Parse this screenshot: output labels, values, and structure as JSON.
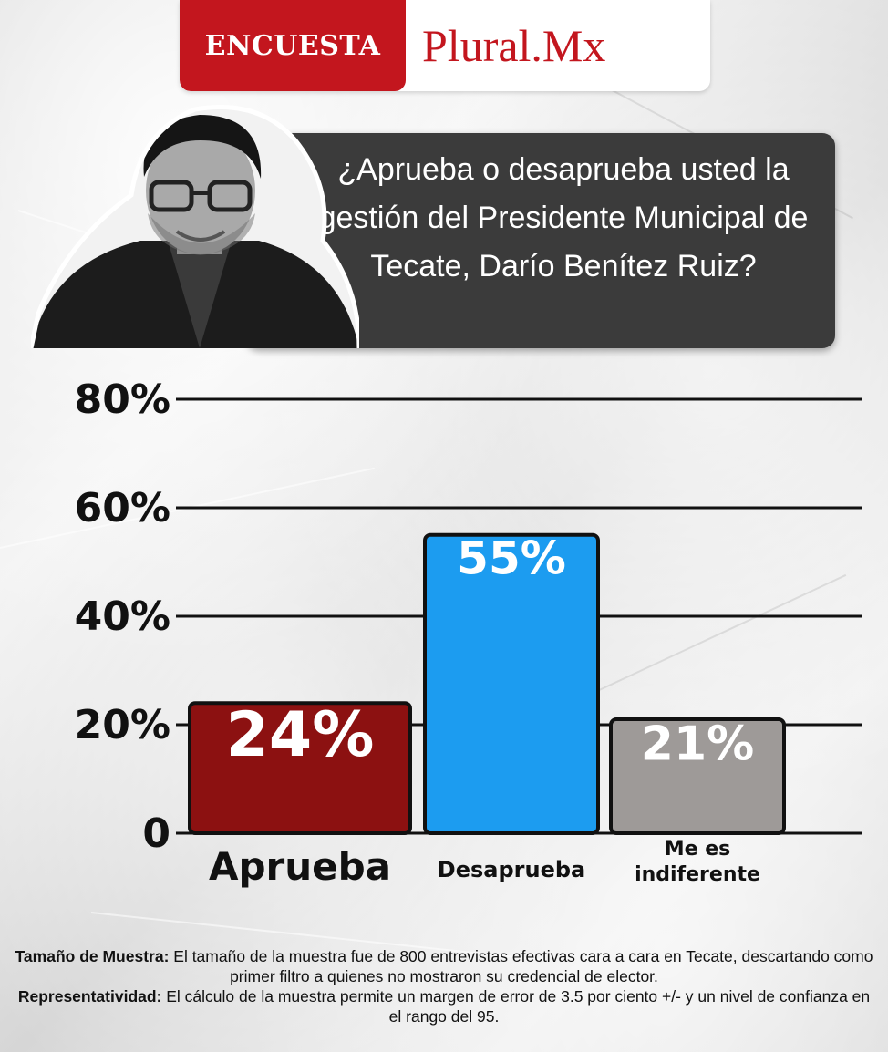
{
  "header": {
    "tag": "ENCUESTA",
    "brand": "Plural.Mx",
    "colors": {
      "red": "#c3161e"
    }
  },
  "question": {
    "text": "¿Aprueba o desaprueba usted la gestión del Presidente Municipal de Tecate, Darío Benítez Ruiz?"
  },
  "portrait": {
    "icon": "man-portrait-icon"
  },
  "chart_data": {
    "type": "bar",
    "categories": [
      "Aprueba",
      "Desaprueba",
      "Me es indiferente"
    ],
    "values": [
      24,
      55,
      21
    ],
    "value_labels": [
      "24%",
      "55%",
      "21%"
    ],
    "colors": [
      "#8c1111",
      "#1c9cf0",
      "#9e9a98"
    ],
    "y_ticks": [
      0,
      20,
      40,
      60,
      80
    ],
    "y_tick_labels": [
      "0",
      "20%",
      "40%",
      "60%",
      "80%"
    ],
    "ylim": [
      0,
      80
    ],
    "grid": true,
    "title": "",
    "xlabel": "",
    "ylabel": ""
  },
  "footer": {
    "sample_label": "Tamaño de Muestra:",
    "sample_text": " El tamaño de la muestra fue de 800 entrevistas efectivas cara a cara en Tecate, descartando como primer filtro a quienes no mostraron su credencial de elector.",
    "rep_label": "Representatividad:",
    "rep_text": " El cálculo de la muestra permite un margen de error de 3.5 por ciento +/- y un nivel de confianza en el rango del 95."
  }
}
